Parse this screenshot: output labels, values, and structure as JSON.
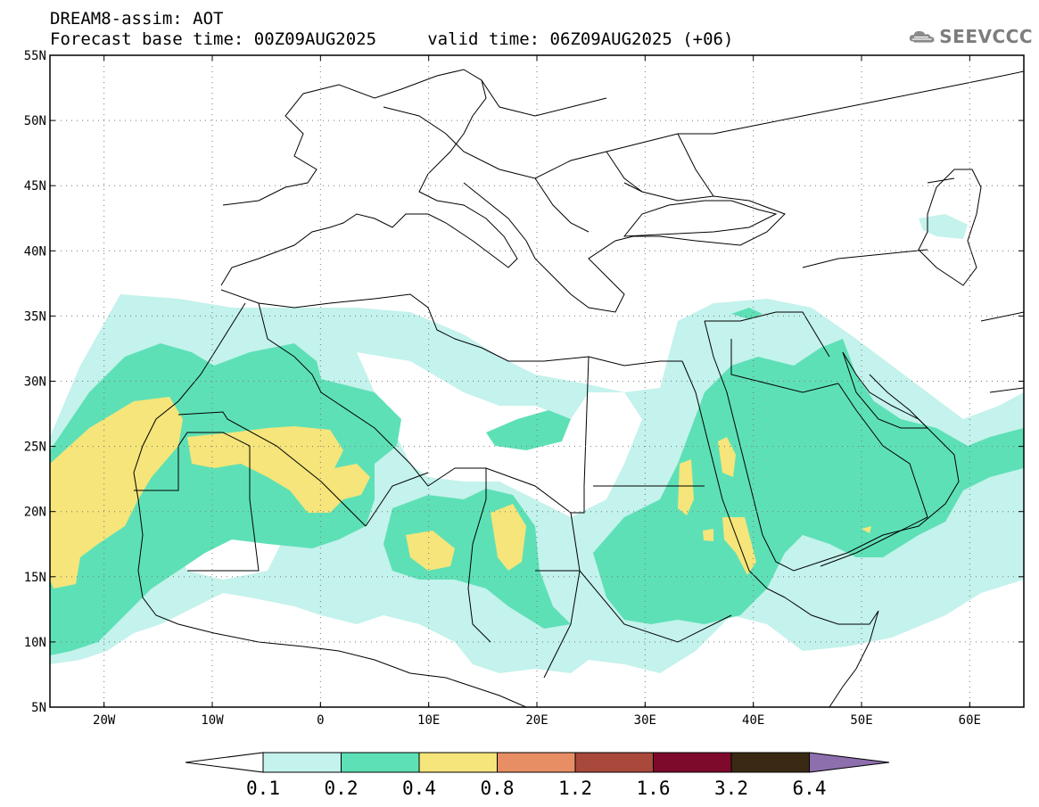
{
  "header": {
    "line1": "DREAM8-assim: AOT",
    "line2": "Forecast base time: 00Z09AUG2025     valid time: 06Z09AUG2025 (+06)",
    "logo": "SEEVCCC",
    "logo_icon": "cloud-icon"
  },
  "map": {
    "lat_labels": [
      "55N",
      "50N",
      "45N",
      "40N",
      "35N",
      "30N",
      "25N",
      "20N",
      "15N",
      "10N",
      "5N"
    ],
    "lon_labels": [
      "20W",
      "10W",
      "0",
      "10E",
      "20E",
      "30E",
      "40E",
      "50E",
      "60E"
    ],
    "lat_range": [
      5,
      55
    ],
    "lon_range": [
      -25,
      65
    ],
    "gridlines": "dotted"
  },
  "colorbar": {
    "labels": [
      "0.1",
      "0.2",
      "0.4",
      "0.8",
      "1.2",
      "1.6",
      "3.2",
      "6.4"
    ],
    "colors": [
      "#c4f2ec",
      "#5ee0b6",
      "#f5e57a",
      "#e88e64",
      "#a9493b",
      "#7d0a2b",
      "#3a2a14",
      "#8e6fae"
    ]
  },
  "field_colors": {
    "low": "#c4f2ec",
    "mid": "#5ee0b6",
    "high": "#f5e57a"
  }
}
